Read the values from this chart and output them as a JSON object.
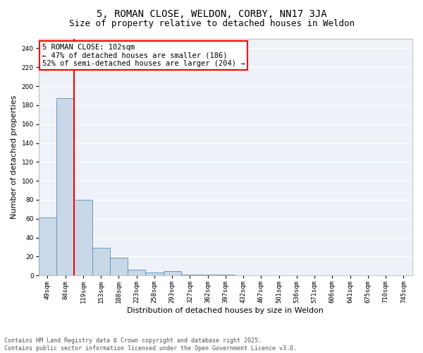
{
  "title": "5, ROMAN CLOSE, WELDON, CORBY, NN17 3JA",
  "subtitle": "Size of property relative to detached houses in Weldon",
  "xlabel": "Distribution of detached houses by size in Weldon",
  "ylabel": "Number of detached properties",
  "categories": [
    "49sqm",
    "84sqm",
    "119sqm",
    "153sqm",
    "188sqm",
    "223sqm",
    "258sqm",
    "293sqm",
    "327sqm",
    "362sqm",
    "397sqm",
    "432sqm",
    "467sqm",
    "501sqm",
    "536sqm",
    "571sqm",
    "606sqm",
    "641sqm",
    "675sqm",
    "710sqm",
    "745sqm"
  ],
  "values": [
    61,
    187,
    80,
    29,
    19,
    6,
    3,
    5,
    1,
    1,
    1,
    0,
    0,
    0,
    0,
    0,
    0,
    0,
    0,
    0,
    0
  ],
  "bar_color": "#c8d8e8",
  "bar_edge_color": "#5b8db8",
  "vline_x": 1.5,
  "vline_color": "red",
  "annotation_text": "5 ROMAN CLOSE: 102sqm\n← 47% of detached houses are smaller (186)\n52% of semi-detached houses are larger (204) →",
  "annotation_box_color": "red",
  "ylim": [
    0,
    250
  ],
  "yticks": [
    0,
    20,
    40,
    60,
    80,
    100,
    120,
    140,
    160,
    180,
    200,
    220,
    240
  ],
  "background_color": "#eef2f8",
  "grid_color": "white",
  "footer": "Contains HM Land Registry data © Crown copyright and database right 2025.\nContains public sector information licensed under the Open Government Licence v3.0.",
  "title_fontsize": 10,
  "subtitle_fontsize": 9,
  "label_fontsize": 8,
  "tick_fontsize": 6.5,
  "annotation_fontsize": 7.5,
  "footer_fontsize": 6
}
